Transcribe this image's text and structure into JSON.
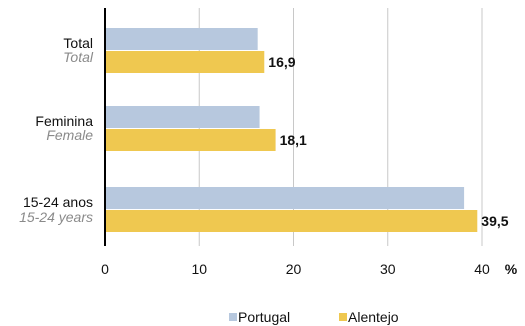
{
  "chart_data": {
    "type": "bar",
    "orientation": "horizontal",
    "categories": [
      {
        "label": "Total",
        "label_en": "Total"
      },
      {
        "label": "Feminina",
        "label_en": "Female"
      },
      {
        "label": "15-24 anos",
        "label_en": "15-24 years"
      }
    ],
    "series": [
      {
        "name": "Portugal",
        "values": [
          16.2,
          16.4,
          38.1
        ],
        "color": "#b7c8de"
      },
      {
        "name": "Alentejo",
        "values": [
          16.9,
          18.1,
          39.5
        ],
        "color": "#efc850"
      }
    ],
    "data_labels": [
      "16,9",
      "18,1",
      "39,5"
    ],
    "xticks": [
      "0",
      "10",
      "20",
      "30",
      "40"
    ],
    "xlim": [
      0,
      40
    ],
    "xunit": "%",
    "grid": true,
    "legend_position": "bottom"
  }
}
